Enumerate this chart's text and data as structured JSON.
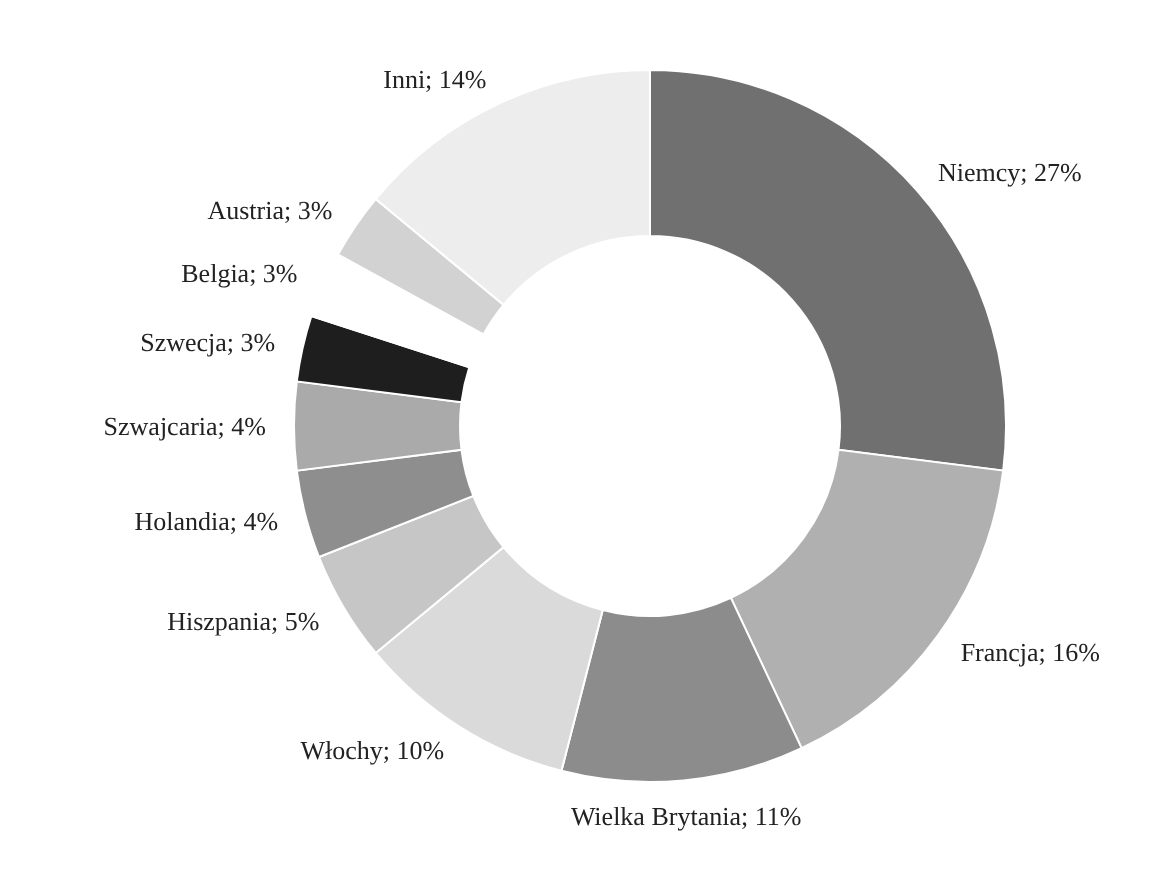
{
  "chart_data": {
    "type": "donut",
    "categories": [
      "Niemcy",
      "Francja",
      "Wielka Brytania",
      "Włochy",
      "Hiszpania",
      "Holandia",
      "Szwajcaria",
      "Szwecja",
      "Belgia",
      "Austria",
      "Inni"
    ],
    "values": [
      27,
      16,
      11,
      10,
      5,
      4,
      4,
      3,
      3,
      3,
      14
    ],
    "colors": [
      "#707070",
      "#b0b0b0",
      "#8c8c8c",
      "#dadada",
      "#c6c6c6",
      "#8e8e8e",
      "#aaaaaa",
      "#1e1e1e",
      "#ffffff",
      "#d2d2d2",
      "#ededed"
    ],
    "value_labels": [
      "27%",
      "16%",
      "11%",
      "10%",
      "5%",
      "4%",
      "4%",
      "3%",
      "3%",
      "3%",
      "14%"
    ]
  }
}
